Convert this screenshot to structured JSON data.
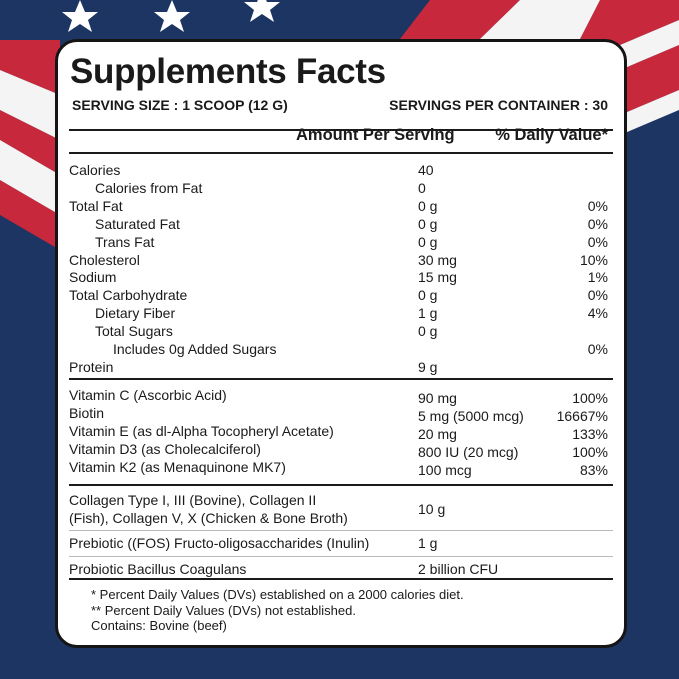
{
  "colors": {
    "navy": "#1c3563",
    "red": "#c8283c",
    "white": "#ffffff",
    "border": "#151515"
  },
  "title": "Supplements Facts",
  "serving_size": "SERVING SIZE : 1 SCOOP (12 G)",
  "servings_per_container": "SERVINGS PER CONTAINER : 30",
  "header": {
    "amount": "Amount Per Serving",
    "dv": "% Daily Value*"
  },
  "nutrients": [
    {
      "name": "Calories",
      "amount": "40",
      "dv": "",
      "indent": 0
    },
    {
      "name": "Calories from Fat",
      "amount": "0",
      "dv": "",
      "indent": 1
    },
    {
      "name": "Total Fat",
      "amount": "0 g",
      "dv": "0%",
      "indent": 0
    },
    {
      "name": "Saturated Fat",
      "amount": "0 g",
      "dv": "0%",
      "indent": 1
    },
    {
      "name": "Trans Fat",
      "amount": "0 g",
      "dv": "0%",
      "indent": 1
    },
    {
      "name": "Cholesterol",
      "amount": "30 mg",
      "dv": "10%",
      "indent": 0
    },
    {
      "name": "Sodium",
      "amount": "15 mg",
      "dv": "1%",
      "indent": 0
    },
    {
      "name": "Total Carbohydrate",
      "amount": "0 g",
      "dv": "0%",
      "indent": 0
    },
    {
      "name": "Dietary Fiber",
      "amount": "1 g",
      "dv": "4%",
      "indent": 1
    },
    {
      "name": "Total Sugars",
      "amount": "0 g",
      "dv": "",
      "indent": 1
    },
    {
      "name": "Includes 0g Added Sugars",
      "amount": "",
      "dv": "0%",
      "indent": 2
    },
    {
      "name": "Protein",
      "amount": "9 g",
      "dv": "",
      "indent": 0
    }
  ],
  "vitamins": [
    {
      "name": "Vitamin C (Ascorbic Acid)",
      "amount": "90 mg",
      "dv": "100%"
    },
    {
      "name": "Biotin",
      "amount": "5 mg (5000 mcg)",
      "dv": "16667%"
    },
    {
      "name": "Vitamin E (as dl-Alpha Tocopheryl Acetate)",
      "amount": "20 mg",
      "dv": "133%"
    },
    {
      "name": "Vitamin D3 (as Cholecalciferol)",
      "amount": "800 IU (20 mcg)",
      "dv": "100%"
    },
    {
      "name": "Vitamin K2 (as Menaquinone MK7)",
      "amount": "100 mcg",
      "dv": "83%"
    }
  ],
  "blends": [
    {
      "name": "Collagen Type I, III (Bovine), Collagen II",
      "name2": "(Fish), Collagen V, X (Chicken & Bone Broth)",
      "amount": "10 g"
    },
    {
      "name": "Prebiotic ((FOS) Fructo-oligosaccharides (Inulin)",
      "amount": "1 g"
    },
    {
      "name": "Probiotic Bacillus Coagulans",
      "amount": "2 billion CFU"
    }
  ],
  "footnotes": [
    "* Percent Daily Values (DVs) established on a 2000 calories diet.",
    "** Percent Daily Values (DVs) not established.",
    "Contains: Bovine (beef)"
  ]
}
